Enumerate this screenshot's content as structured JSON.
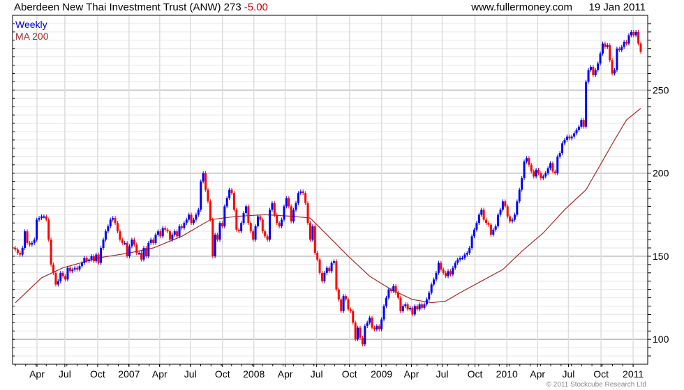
{
  "header": {
    "title": "Aberdeen New Thai Investment Trust (ANW) 273",
    "change": "-5.00",
    "site": "www.fullermoney.com",
    "date": "19 Jan 2011"
  },
  "legend": {
    "weekly": "Weekly",
    "ma": "MA 200"
  },
  "footer": {
    "copyright": "© 2011 Stockcube Research Ltd"
  },
  "colors": {
    "up": "#0000ff",
    "down": "#ff0000",
    "ma": "#a52a2a",
    "legend_weekly": "#0000cc",
    "change": "#cc0000"
  },
  "chart_data": {
    "type": "candlestick",
    "title": "Aberdeen New Thai Investment Trust (ANW)",
    "period": "weekly",
    "ylim": [
      85,
      295
    ],
    "yticks": [
      100,
      150,
      200,
      250
    ],
    "ytick_labels": [
      "100",
      "150",
      "200",
      "250"
    ],
    "xticks": [
      {
        "week": 9.1,
        "label": "Apr"
      },
      {
        "week": 20.8,
        "label": "Jul"
      },
      {
        "week": 34.6,
        "label": "Oct"
      },
      {
        "week": 47.8,
        "label": "2007"
      },
      {
        "week": 60.7,
        "label": "Apr"
      },
      {
        "week": 73.6,
        "label": "Jul"
      },
      {
        "week": 87.1,
        "label": "Oct"
      },
      {
        "week": 100.3,
        "label": "2008"
      },
      {
        "week": 113.5,
        "label": "Apr"
      },
      {
        "week": 126.7,
        "label": "Jul"
      },
      {
        "week": 140.5,
        "label": "Oct"
      },
      {
        "week": 154.0,
        "label": "2009"
      },
      {
        "week": 166.6,
        "label": "Apr"
      },
      {
        "week": 179.5,
        "label": "Jul"
      },
      {
        "week": 193.3,
        "label": "Oct"
      },
      {
        "week": 206.7,
        "label": "2010"
      },
      {
        "week": 219.6,
        "label": "Apr"
      },
      {
        "week": 232.6,
        "label": "Jul"
      },
      {
        "week": 246.3,
        "label": "Oct"
      },
      {
        "week": 259.8,
        "label": "2011"
      }
    ],
    "closes": [
      154,
      152,
      151,
      155,
      165,
      158,
      157,
      158,
      160,
      172,
      173,
      174,
      174,
      172,
      160,
      145,
      140,
      133,
      135,
      140,
      138,
      136,
      143,
      141,
      142,
      143,
      142,
      144,
      146,
      149,
      147,
      148,
      150,
      147,
      151,
      146,
      155,
      160,
      165,
      168,
      172,
      173,
      170,
      165,
      160,
      158,
      158,
      150,
      156,
      160,
      157,
      152,
      152,
      148,
      155,
      150,
      158,
      160,
      158,
      163,
      165,
      162,
      167,
      166,
      165,
      160,
      163,
      165,
      162,
      168,
      167,
      170,
      172,
      175,
      170,
      172,
      175,
      178,
      195,
      200,
      190,
      183,
      172,
      150,
      163,
      160,
      170,
      168,
      180,
      185,
      190,
      188,
      178,
      166,
      165,
      170,
      176,
      180,
      170,
      165,
      160,
      168,
      174,
      172,
      165,
      162,
      160,
      178,
      182,
      175,
      170,
      168,
      172,
      180,
      185,
      180,
      171,
      178,
      182,
      188,
      189,
      188,
      182,
      170,
      160,
      168,
      152,
      148,
      140,
      135,
      140,
      143,
      141,
      146,
      147,
      130,
      124,
      117,
      126,
      124,
      118,
      117,
      110,
      100,
      107,
      101,
      97,
      108,
      110,
      113,
      107,
      106,
      108,
      106,
      112,
      120,
      125,
      130,
      129,
      132,
      128,
      125,
      117,
      120,
      121,
      118,
      119,
      115,
      120,
      118,
      121,
      119,
      121,
      124,
      128,
      133,
      136,
      140,
      146,
      142,
      140,
      138,
      141,
      139,
      143,
      146,
      148,
      149,
      149,
      151,
      152,
      155,
      162,
      166,
      170,
      175,
      178,
      172,
      170,
      169,
      163,
      166,
      168,
      175,
      178,
      183,
      180,
      174,
      171,
      172,
      175,
      183,
      190,
      197,
      207,
      209,
      205,
      201,
      198,
      202,
      200,
      197,
      198,
      200,
      203,
      206,
      201,
      200,
      210,
      212,
      218,
      220,
      222,
      221,
      222,
      224,
      226,
      228,
      232,
      228,
      255,
      262,
      264,
      259,
      262,
      266,
      272,
      278,
      276,
      277,
      268,
      260,
      262,
      275,
      274,
      276,
      279,
      278,
      283,
      285,
      283,
      285,
      278,
      273
    ],
    "ma200": [
      {
        "week": 0,
        "value": 122
      },
      {
        "week": 11,
        "value": 137
      },
      {
        "week": 20,
        "value": 143
      },
      {
        "week": 35,
        "value": 149
      },
      {
        "week": 48,
        "value": 152
      },
      {
        "week": 58,
        "value": 155
      },
      {
        "week": 70,
        "value": 162
      },
      {
        "week": 82,
        "value": 172
      },
      {
        "week": 93,
        "value": 174
      },
      {
        "week": 105,
        "value": 175
      },
      {
        "week": 117,
        "value": 174
      },
      {
        "week": 124,
        "value": 173
      },
      {
        "week": 131,
        "value": 163
      },
      {
        "week": 140,
        "value": 150
      },
      {
        "week": 149,
        "value": 138
      },
      {
        "week": 158,
        "value": 130
      },
      {
        "week": 167,
        "value": 124
      },
      {
        "week": 175,
        "value": 122
      },
      {
        "week": 181,
        "value": 123
      },
      {
        "week": 187,
        "value": 128
      },
      {
        "week": 196,
        "value": 135
      },
      {
        "week": 205,
        "value": 142
      },
      {
        "week": 213,
        "value": 153
      },
      {
        "week": 222,
        "value": 164
      },
      {
        "week": 231,
        "value": 178
      },
      {
        "week": 240,
        "value": 190
      },
      {
        "week": 246,
        "value": 205
      },
      {
        "week": 252,
        "value": 220
      },
      {
        "week": 257,
        "value": 232
      },
      {
        "week": 263,
        "value": 239
      }
    ]
  }
}
